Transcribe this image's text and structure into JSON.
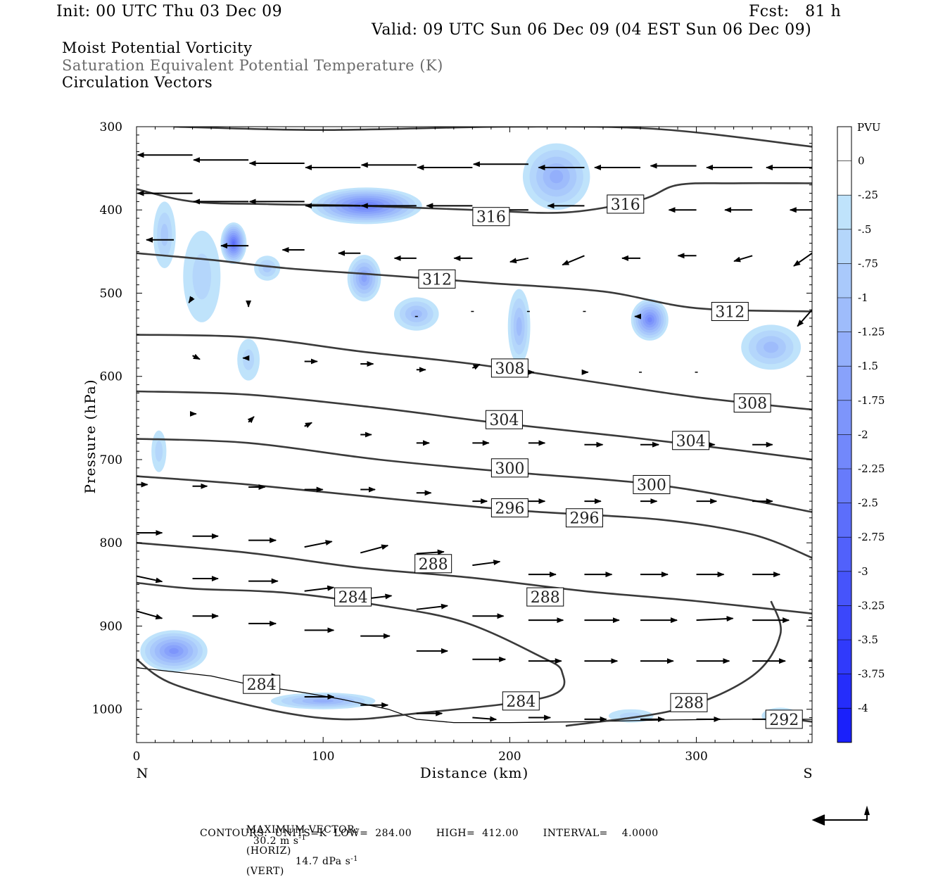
{
  "header": {
    "init": "Init: 00 UTC Thu 03 Dec 09",
    "fcst": "Fcst:   81 h",
    "valid": "Valid: 09 UTC Sun 06 Dec 09 (04 EST Sun 06 Dec 09)"
  },
  "titles": {
    "line1": "Moist Potential Vorticity",
    "line2": "Saturation Equivalent Potential Temperature (K)",
    "line3": "Circulation Vectors"
  },
  "footer": {
    "max_vector_label": "MAXIMUM VECTOR:",
    "max_horiz": "30.2 m s",
    "horiz_suffix": "(HORIZ)",
    "max_vert": "14.7 dPa s",
    "vert_suffix": "(VERT)",
    "contours": "CONTOURS:  UNITS=K  LOW=  284.00       HIGH=  412.00       INTERVAL=    4.0000",
    "exponent": "-1"
  },
  "colors": {
    "contour": "#3a3a3a",
    "vector": "#000000",
    "grey_title": "#6b6b6b",
    "scale": [
      "#ffffff",
      "#ffffff",
      "#bfe3fb",
      "#b4d6fb",
      "#a9c9fb",
      "#9ebcfb",
      "#93affb",
      "#88a2fb",
      "#7d95fb",
      "#7288fb",
      "#677bfb",
      "#5c6efb",
      "#5161fb",
      "#4654fb",
      "#3b47fb",
      "#303afb",
      "#252dfb",
      "#1a20fb",
      "#0f13fb"
    ]
  },
  "chart_data": {
    "type": "contour",
    "xlabel": "Distance (km)",
    "ylabel": "Pressure (hPa)",
    "xlim": [
      0,
      362
    ],
    "ylim": [
      1040,
      300
    ],
    "x_ticks": [
      0,
      100,
      200,
      300
    ],
    "y_ticks": [
      300,
      400,
      500,
      600,
      700,
      800,
      900,
      1000
    ],
    "x_end_labels": {
      "left": "N",
      "right": "S"
    },
    "colorbar": {
      "title": "PVU",
      "levels": [
        "0",
        "-.25",
        "-.5",
        "-.75",
        "-1",
        "-1.25",
        "-1.5",
        "-1.75",
        "-2",
        "-2.25",
        "-2.5",
        "-2.75",
        "-3",
        "-3.25",
        "-3.5",
        "-3.75",
        "-4"
      ]
    },
    "contours": [
      {
        "label": "316",
        "points": [
          [
            0,
            375
          ],
          [
            30,
            390
          ],
          [
            70,
            393
          ],
          [
            120,
            395
          ],
          [
            180,
            400
          ],
          [
            230,
            403
          ],
          [
            270,
            388
          ],
          [
            290,
            370
          ],
          [
            320,
            368
          ],
          [
            362,
            368
          ]
        ],
        "labels_at": [
          [
            190,
            408
          ],
          [
            262,
            393
          ]
        ]
      },
      {
        "label": "316_top",
        "points": [
          [
            20,
            300
          ],
          [
            100,
            304
          ],
          [
            200,
            300
          ],
          [
            280,
            303
          ],
          [
            362,
            324
          ]
        ],
        "labels_at": []
      },
      {
        "label": "312",
        "points": [
          [
            0,
            452
          ],
          [
            40,
            460
          ],
          [
            80,
            470
          ],
          [
            130,
            478
          ],
          [
            190,
            488
          ],
          [
            250,
            498
          ],
          [
            300,
            518
          ],
          [
            362,
            522
          ]
        ],
        "labels_at": [
          [
            161,
            483
          ],
          [
            318,
            522
          ]
        ]
      },
      {
        "label": "308",
        "points": [
          [
            0,
            550
          ],
          [
            60,
            553
          ],
          [
            120,
            570
          ],
          [
            180,
            585
          ],
          [
            240,
            605
          ],
          [
            300,
            625
          ],
          [
            362,
            640
          ]
        ],
        "labels_at": [
          [
            200,
            590
          ],
          [
            330,
            632
          ]
        ]
      },
      {
        "label": "304",
        "points": [
          [
            0,
            618
          ],
          [
            60,
            622
          ],
          [
            130,
            638
          ],
          [
            190,
            655
          ],
          [
            260,
            672
          ],
          [
            320,
            688
          ],
          [
            362,
            700
          ]
        ],
        "labels_at": [
          [
            197,
            652
          ],
          [
            297,
            677
          ]
        ]
      },
      {
        "label": "300",
        "points": [
          [
            0,
            675
          ],
          [
            60,
            680
          ],
          [
            130,
            700
          ],
          [
            200,
            715
          ],
          [
            270,
            728
          ],
          [
            320,
            745
          ],
          [
            362,
            763
          ]
        ],
        "labels_at": [
          [
            200,
            710
          ],
          [
            276,
            730
          ]
        ]
      },
      {
        "label": "296",
        "points": [
          [
            0,
            720
          ],
          [
            60,
            730
          ],
          [
            140,
            748
          ],
          [
            210,
            762
          ],
          [
            280,
            772
          ],
          [
            330,
            790
          ],
          [
            362,
            818
          ]
        ],
        "labels_at": [
          [
            200,
            758
          ],
          [
            240,
            770
          ]
        ]
      },
      {
        "label": "288",
        "points": [
          [
            0,
            800
          ],
          [
            60,
            812
          ],
          [
            120,
            830
          ],
          [
            180,
            842
          ],
          [
            240,
            858
          ],
          [
            300,
            870
          ],
          [
            362,
            885
          ]
        ],
        "labels_at": [
          [
            159,
            825
          ],
          [
            219,
            865
          ]
        ]
      },
      {
        "label": "284",
        "points": [
          [
            0,
            848
          ],
          [
            30,
            855
          ],
          [
            80,
            860
          ],
          [
            130,
            875
          ],
          [
            175,
            895
          ],
          [
            215,
            935
          ],
          [
            228,
            955
          ],
          [
            220,
            985
          ],
          [
            150,
            1005
          ],
          [
            110,
            1012
          ],
          [
            70,
            1000
          ],
          [
            20,
            970
          ],
          [
            0,
            940
          ]
        ],
        "labels_at": [
          [
            116,
            865
          ],
          [
            67,
            970
          ],
          [
            206,
            990
          ]
        ]
      },
      {
        "label": "288",
        "points": [
          [
            230,
            1020
          ],
          [
            290,
            1000
          ],
          [
            330,
            960
          ],
          [
            345,
            910
          ],
          [
            340,
            870
          ]
        ],
        "labels_at": [
          [
            296,
            992
          ]
        ]
      },
      {
        "label": "292",
        "points": [
          [
            345,
            1010
          ],
          [
            362,
            1015
          ]
        ],
        "labels_at": [
          [
            347,
            1012
          ]
        ]
      }
    ],
    "pv_blobs": [
      {
        "x": 123,
        "p": 395,
        "rx": 30,
        "rp": 22,
        "min": -2.25
      },
      {
        "x": 52,
        "p": 440,
        "rx": 7,
        "rp": 25,
        "min": -2.5
      },
      {
        "x": 275,
        "p": 532,
        "rx": 10,
        "rp": 25,
        "min": -2.0
      },
      {
        "x": 122,
        "p": 482,
        "rx": 9,
        "rp": 28,
        "min": -1.5
      },
      {
        "x": 225,
        "p": 360,
        "rx": 18,
        "rp": 40,
        "min": -1.25
      },
      {
        "x": 150,
        "p": 525,
        "rx": 12,
        "rp": 20,
        "min": -1.0
      },
      {
        "x": 205,
        "p": 540,
        "rx": 6,
        "rp": 45,
        "min": -1.0
      },
      {
        "x": 340,
        "p": 565,
        "rx": 16,
        "rp": 27,
        "min": -1.0
      },
      {
        "x": 15,
        "p": 430,
        "rx": 6,
        "rp": 40,
        "min": -0.75
      },
      {
        "x": 35,
        "p": 480,
        "rx": 10,
        "rp": 55,
        "min": -0.5
      },
      {
        "x": 12,
        "p": 690,
        "rx": 4,
        "rp": 25,
        "min": -0.5
      },
      {
        "x": 70,
        "p": 470,
        "rx": 7,
        "rp": 15,
        "min": -0.75
      },
      {
        "x": 60,
        "p": 580,
        "rx": 6,
        "rp": 25,
        "min": -0.5
      },
      {
        "x": 20,
        "p": 930,
        "rx": 18,
        "rp": 25,
        "min": -1.75
      },
      {
        "x": 100,
        "p": 990,
        "rx": 28,
        "rp": 10,
        "min": -1.25
      },
      {
        "x": 345,
        "p": 1008,
        "rx": 10,
        "rp": 10,
        "min": -0.5
      },
      {
        "x": 265,
        "p": 1008,
        "rx": 12,
        "rp": 8,
        "min": -0.5
      }
    ],
    "vectors": [
      [
        0,
        330,
        -3,
        0
      ],
      [
        30,
        334,
        -3,
        0
      ],
      [
        60,
        340,
        -3,
        0
      ],
      [
        90,
        344,
        -3,
        0
      ],
      [
        120,
        349,
        -3,
        0
      ],
      [
        150,
        346,
        -3,
        0
      ],
      [
        180,
        349,
        -3,
        0
      ],
      [
        210,
        345,
        -3,
        0
      ],
      [
        240,
        349,
        -2.5,
        0
      ],
      [
        270,
        349,
        -2.5,
        0
      ],
      [
        300,
        347,
        -2.5,
        0
      ],
      [
        330,
        349,
        -2.5,
        0
      ],
      [
        362,
        349,
        -2.5,
        0
      ],
      [
        0,
        380,
        -3,
        0
      ],
      [
        30,
        380,
        -3,
        0
      ],
      [
        60,
        390,
        -3,
        0
      ],
      [
        90,
        390,
        -3,
        0
      ],
      [
        120,
        395,
        -3,
        0
      ],
      [
        150,
        395,
        -3,
        0
      ],
      [
        180,
        395,
        -2.5,
        0
      ],
      [
        210,
        400,
        -2,
        0
      ],
      [
        240,
        395,
        -2,
        0
      ],
      [
        270,
        400,
        -1.5,
        0
      ],
      [
        300,
        400,
        -1.5,
        0
      ],
      [
        330,
        400,
        -1.5,
        0
      ],
      [
        362,
        400,
        -1.2,
        0
      ],
      [
        20,
        436,
        -1.5,
        0
      ],
      [
        60,
        443,
        -1.5,
        0
      ],
      [
        90,
        448,
        -1.2,
        0
      ],
      [
        120,
        452,
        -1.2,
        0
      ],
      [
        150,
        458,
        -1.2,
        0
      ],
      [
        180,
        458,
        -1,
        0
      ],
      [
        210,
        458,
        -1,
        0.2
      ],
      [
        240,
        455,
        -1.2,
        0.5
      ],
      [
        270,
        458,
        -1,
        0
      ],
      [
        300,
        455,
        -1,
        0
      ],
      [
        330,
        455,
        -1,
        0.3
      ],
      [
        362,
        452,
        -1,
        0.7
      ],
      [
        30,
        505,
        -0.2,
        0.3
      ],
      [
        60,
        512,
        0,
        0.2
      ],
      [
        150,
        528,
        0.1,
        0
      ],
      [
        180,
        522,
        0,
        0
      ],
      [
        210,
        522,
        0,
        0
      ],
      [
        240,
        522,
        0,
        0
      ],
      [
        270,
        528,
        -0.3,
        0
      ],
      [
        362,
        520,
        -0.8,
        0.9
      ],
      [
        30,
        575,
        0.4,
        0.2
      ],
      [
        60,
        578,
        -0.3,
        0
      ],
      [
        90,
        582,
        0.7,
        0
      ],
      [
        120,
        585,
        0.7,
        0
      ],
      [
        150,
        592,
        0.5,
        0
      ],
      [
        180,
        590,
        0.4,
        -0.2
      ],
      [
        210,
        595,
        0.3,
        0
      ],
      [
        240,
        595,
        0.2,
        0
      ],
      [
        270,
        595,
        0.1,
        0
      ],
      [
        300,
        595,
        0.1,
        0
      ],
      [
        30,
        645,
        0.2,
        0
      ],
      [
        60,
        655,
        0.3,
        -0.3
      ],
      [
        90,
        660,
        0.4,
        -0.2
      ],
      [
        120,
        670,
        0.6,
        0
      ],
      [
        150,
        680,
        0.7,
        0
      ],
      [
        180,
        680,
        0.9,
        0
      ],
      [
        210,
        680,
        0.9,
        0
      ],
      [
        240,
        682,
        1.0,
        0
      ],
      [
        270,
        682,
        1.0,
        0
      ],
      [
        300,
        682,
        1.0,
        0
      ],
      [
        330,
        682,
        1.1,
        0
      ],
      [
        0,
        730,
        0.6,
        0
      ],
      [
        30,
        732,
        0.8,
        0
      ],
      [
        60,
        733,
        0.9,
        0
      ],
      [
        90,
        736,
        1.0,
        0
      ],
      [
        120,
        736,
        0.8,
        0
      ],
      [
        150,
        740,
        0.8,
        0
      ],
      [
        180,
        750,
        0.8,
        0
      ],
      [
        210,
        750,
        0.9,
        0
      ],
      [
        240,
        750,
        0.9,
        0
      ],
      [
        270,
        750,
        0.9,
        0
      ],
      [
        300,
        750,
        1.1,
        0
      ],
      [
        330,
        750,
        1.1,
        0
      ],
      [
        0,
        788,
        1.4,
        0
      ],
      [
        30,
        792,
        1.4,
        0
      ],
      [
        60,
        797,
        1.5,
        0
      ],
      [
        90,
        805,
        1.5,
        -0.3
      ],
      [
        120,
        812,
        1.5,
        -0.4
      ],
      [
        150,
        813,
        1.5,
        -0.1
      ],
      [
        180,
        827,
        1.5,
        -0.2
      ],
      [
        210,
        838,
        1.5,
        0
      ],
      [
        240,
        838,
        1.5,
        0
      ],
      [
        270,
        838,
        1.5,
        0
      ],
      [
        300,
        838,
        1.5,
        0
      ],
      [
        330,
        838,
        1.5,
        0
      ],
      [
        0,
        840,
        1.4,
        0.3
      ],
      [
        30,
        843,
        1.4,
        0
      ],
      [
        60,
        846,
        1.6,
        0
      ],
      [
        90,
        858,
        1.6,
        -0.2
      ],
      [
        120,
        868,
        1.7,
        -0.2
      ],
      [
        150,
        880,
        1.7,
        -0.2
      ],
      [
        180,
        888,
        1.7,
        0
      ],
      [
        210,
        893,
        1.9,
        0
      ],
      [
        240,
        893,
        1.9,
        0
      ],
      [
        270,
        893,
        2.0,
        0
      ],
      [
        300,
        893,
        2.0,
        -0.1
      ],
      [
        330,
        893,
        2.0,
        0
      ],
      [
        360,
        893,
        2.0,
        0
      ],
      [
        0,
        882,
        1.4,
        0.4
      ],
      [
        30,
        888,
        1.4,
        0
      ],
      [
        60,
        897,
        1.5,
        0
      ],
      [
        90,
        905,
        1.6,
        0
      ],
      [
        120,
        912,
        1.6,
        0
      ],
      [
        150,
        930,
        1.7,
        0
      ],
      [
        180,
        940,
        1.8,
        0
      ],
      [
        210,
        942,
        1.8,
        0
      ],
      [
        240,
        942,
        1.8,
        0
      ],
      [
        270,
        942,
        1.8,
        0
      ],
      [
        300,
        942,
        1.8,
        0
      ],
      [
        330,
        942,
        1.8,
        0
      ],
      [
        360,
        942,
        1.8,
        0
      ],
      [
        60,
        960,
        1.6,
        0
      ],
      [
        90,
        985,
        1.6,
        0
      ],
      [
        120,
        995,
        1.5,
        0
      ],
      [
        150,
        1005,
        1.4,
        0
      ],
      [
        180,
        1010,
        1.3,
        0.1
      ],
      [
        210,
        1010,
        1.2,
        0
      ],
      [
        240,
        1012,
        1.2,
        0
      ],
      [
        270,
        1012,
        1.3,
        0
      ],
      [
        300,
        1012,
        1.3,
        0
      ],
      [
        330,
        1012,
        1.3,
        0
      ]
    ],
    "terrain": [
      [
        0,
        950
      ],
      [
        20,
        955
      ],
      [
        40,
        960
      ],
      [
        60,
        970
      ],
      [
        90,
        980
      ],
      [
        110,
        988
      ],
      [
        135,
        1000
      ],
      [
        150,
        1012
      ],
      [
        170,
        1016
      ],
      [
        200,
        1016
      ],
      [
        240,
        1015
      ],
      [
        280,
        1013
      ],
      [
        320,
        1012
      ],
      [
        362,
        1012
      ]
    ],
    "max_vector_key": {
      "horizontal": 30.2,
      "vertical": 14.7
    }
  }
}
